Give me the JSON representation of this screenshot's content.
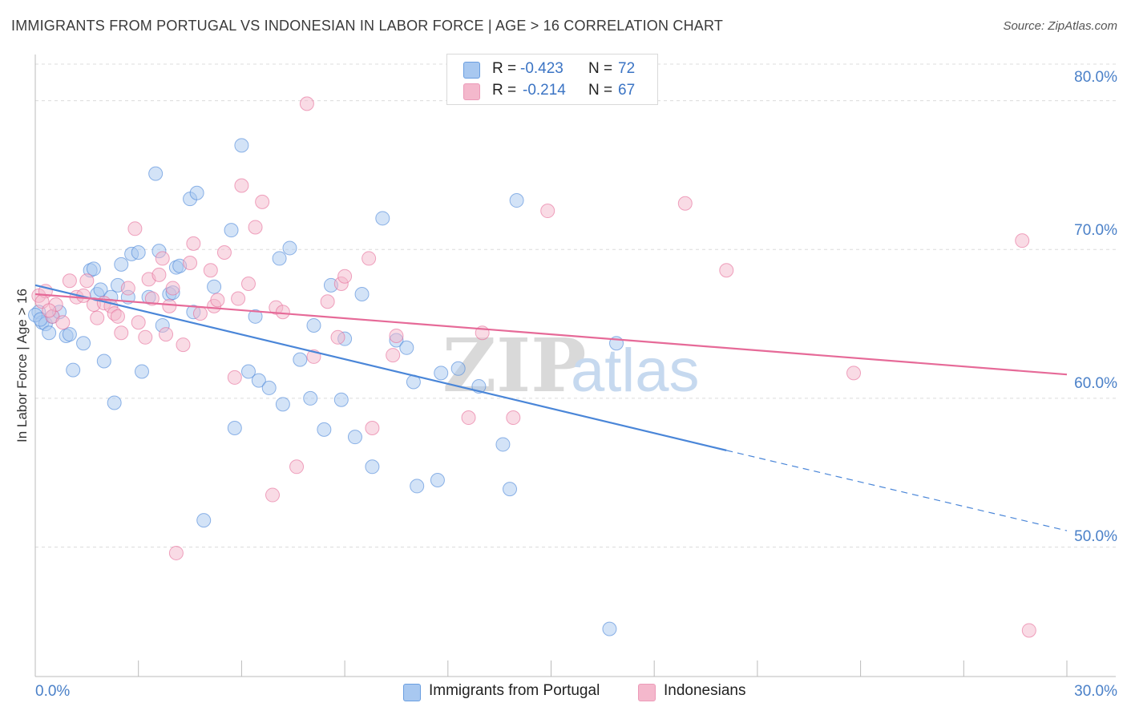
{
  "header": {
    "title": "IMMIGRANTS FROM PORTUGAL VS INDONESIAN IN LABOR FORCE | AGE > 16 CORRELATION CHART",
    "source": "Source: ZipAtlas.com"
  },
  "stats": [
    {
      "r_label": "R =",
      "r_value": "-0.423",
      "n_label": "N =",
      "n_value": "72",
      "color": "#a8c8f0"
    },
    {
      "r_label": "R =",
      "r_value": "-0.214",
      "n_label": "N =",
      "n_value": "67",
      "color": "#f4b8cc"
    }
  ],
  "legend": [
    {
      "label": "Immigrants from Portugal",
      "color": "#a8c8f0"
    },
    {
      "label": "Indonesians",
      "color": "#f4b8cc"
    }
  ],
  "watermark": {
    "zip": "ZIP",
    "atlas": "atlas"
  },
  "chart_data": {
    "type": "scatter",
    "ylabel": "In Labor Force | Age > 16",
    "xlim": [
      0,
      30
    ],
    "ylim": [
      41.3,
      83
    ],
    "x_tick_labels": [
      "0.0%",
      "30.0%"
    ],
    "y_ticks": [
      50,
      60,
      70,
      80
    ],
    "y_tick_labels": [
      "50.0%",
      "60.0%",
      "70.0%",
      "80.0%"
    ],
    "grid": "horizontal dashed",
    "series": [
      {
        "name": "Immigrants from Portugal",
        "color": "#4a86d8",
        "fill": "#a8c8f0",
        "points": [
          [
            0.1,
            65.8
          ],
          [
            0.2,
            65.1
          ],
          [
            0.3,
            65.0
          ],
          [
            0.4,
            64.4
          ],
          [
            0.5,
            65.5
          ],
          [
            0.7,
            65.8
          ],
          [
            0.9,
            64.2
          ],
          [
            1.0,
            64.3
          ],
          [
            1.4,
            63.7
          ],
          [
            1.1,
            61.9
          ],
          [
            1.6,
            68.6
          ],
          [
            1.7,
            68.7
          ],
          [
            1.8,
            67.0
          ],
          [
            1.9,
            67.3
          ],
          [
            2.0,
            62.5
          ],
          [
            2.2,
            66.8
          ],
          [
            2.3,
            59.7
          ],
          [
            2.4,
            67.6
          ],
          [
            2.5,
            69.0
          ],
          [
            2.7,
            66.8
          ],
          [
            2.8,
            69.7
          ],
          [
            3.0,
            69.8
          ],
          [
            3.1,
            61.8
          ],
          [
            3.3,
            66.8
          ],
          [
            3.5,
            75.1
          ],
          [
            3.6,
            69.9
          ],
          [
            3.7,
            64.9
          ],
          [
            3.9,
            67.0
          ],
          [
            4.0,
            67.1
          ],
          [
            4.1,
            68.8
          ],
          [
            4.2,
            68.9
          ],
          [
            4.5,
            73.4
          ],
          [
            4.6,
            65.8
          ],
          [
            4.7,
            73.8
          ],
          [
            4.9,
            51.8
          ],
          [
            5.2,
            67.5
          ],
          [
            5.7,
            71.3
          ],
          [
            5.8,
            58.0
          ],
          [
            6.0,
            77.0
          ],
          [
            6.2,
            61.8
          ],
          [
            6.4,
            65.5
          ],
          [
            6.5,
            61.2
          ],
          [
            6.8,
            60.7
          ],
          [
            7.1,
            69.4
          ],
          [
            7.2,
            59.6
          ],
          [
            7.4,
            70.1
          ],
          [
            7.7,
            62.6
          ],
          [
            8.1,
            64.9
          ],
          [
            8.0,
            60.0
          ],
          [
            8.4,
            57.9
          ],
          [
            8.6,
            67.6
          ],
          [
            8.9,
            59.9
          ],
          [
            9.0,
            64.0
          ],
          [
            9.3,
            57.4
          ],
          [
            9.5,
            67.0
          ],
          [
            9.8,
            55.4
          ],
          [
            10.1,
            72.1
          ],
          [
            10.5,
            63.9
          ],
          [
            10.8,
            63.4
          ],
          [
            11.0,
            61.1
          ],
          [
            11.1,
            54.1
          ],
          [
            11.7,
            54.5
          ],
          [
            11.8,
            61.7
          ],
          [
            12.3,
            62.0
          ],
          [
            12.9,
            60.8
          ],
          [
            13.6,
            56.9
          ],
          [
            13.8,
            53.9
          ],
          [
            14.0,
            73.3
          ],
          [
            16.7,
            44.5
          ],
          [
            16.9,
            63.7
          ],
          [
            0.0,
            65.6
          ],
          [
            0.15,
            65.3
          ]
        ]
      },
      {
        "name": "Indonesians",
        "color": "#e66a98",
        "fill": "#f4b8cc",
        "points": [
          [
            0.1,
            66.9
          ],
          [
            0.3,
            67.2
          ],
          [
            0.5,
            65.5
          ],
          [
            0.6,
            66.3
          ],
          [
            0.8,
            65.1
          ],
          [
            1.0,
            67.9
          ],
          [
            1.2,
            66.8
          ],
          [
            1.4,
            66.9
          ],
          [
            1.5,
            67.9
          ],
          [
            1.7,
            66.3
          ],
          [
            1.8,
            65.4
          ],
          [
            2.0,
            66.4
          ],
          [
            2.2,
            66.2
          ],
          [
            2.3,
            65.7
          ],
          [
            2.4,
            65.5
          ],
          [
            2.5,
            64.4
          ],
          [
            2.7,
            67.4
          ],
          [
            2.9,
            71.4
          ],
          [
            3.0,
            65.1
          ],
          [
            3.2,
            64.1
          ],
          [
            3.3,
            68.0
          ],
          [
            3.4,
            66.7
          ],
          [
            3.6,
            68.3
          ],
          [
            3.7,
            69.4
          ],
          [
            3.8,
            64.3
          ],
          [
            3.9,
            66.2
          ],
          [
            4.0,
            67.4
          ],
          [
            4.1,
            49.6
          ],
          [
            4.3,
            63.6
          ],
          [
            4.5,
            69.1
          ],
          [
            4.6,
            70.4
          ],
          [
            4.8,
            65.7
          ],
          [
            5.1,
            68.6
          ],
          [
            5.2,
            66.2
          ],
          [
            5.3,
            66.6
          ],
          [
            5.5,
            69.8
          ],
          [
            5.8,
            61.4
          ],
          [
            5.9,
            66.7
          ],
          [
            6.0,
            74.3
          ],
          [
            6.2,
            67.7
          ],
          [
            6.4,
            71.5
          ],
          [
            6.6,
            73.2
          ],
          [
            6.9,
            53.5
          ],
          [
            7.0,
            66.1
          ],
          [
            7.2,
            65.8
          ],
          [
            7.6,
            55.4
          ],
          [
            7.9,
            79.8
          ],
          [
            8.1,
            62.8
          ],
          [
            8.5,
            66.5
          ],
          [
            8.8,
            64.1
          ],
          [
            8.9,
            67.7
          ],
          [
            9.0,
            68.2
          ],
          [
            9.7,
            69.4
          ],
          [
            9.8,
            58.0
          ],
          [
            10.4,
            62.9
          ],
          [
            10.5,
            64.2
          ],
          [
            12.6,
            58.7
          ],
          [
            13.0,
            64.4
          ],
          [
            13.9,
            58.7
          ],
          [
            14.9,
            72.6
          ],
          [
            18.9,
            73.1
          ],
          [
            20.1,
            68.6
          ],
          [
            23.8,
            61.7
          ],
          [
            28.7,
            70.6
          ],
          [
            28.9,
            44.4
          ],
          [
            0.2,
            66.5
          ],
          [
            0.4,
            65.9
          ]
        ]
      }
    ],
    "trendlines": [
      {
        "series": "Immigrants from Portugal",
        "solid_from": [
          0,
          67.6
        ],
        "solid_to": [
          20.1,
          56.5
        ],
        "dashed_to": [
          30,
          51.1
        ]
      },
      {
        "series": "Indonesians",
        "solid_from": [
          0,
          67.0
        ],
        "solid_to": [
          30,
          61.6
        ]
      }
    ]
  }
}
